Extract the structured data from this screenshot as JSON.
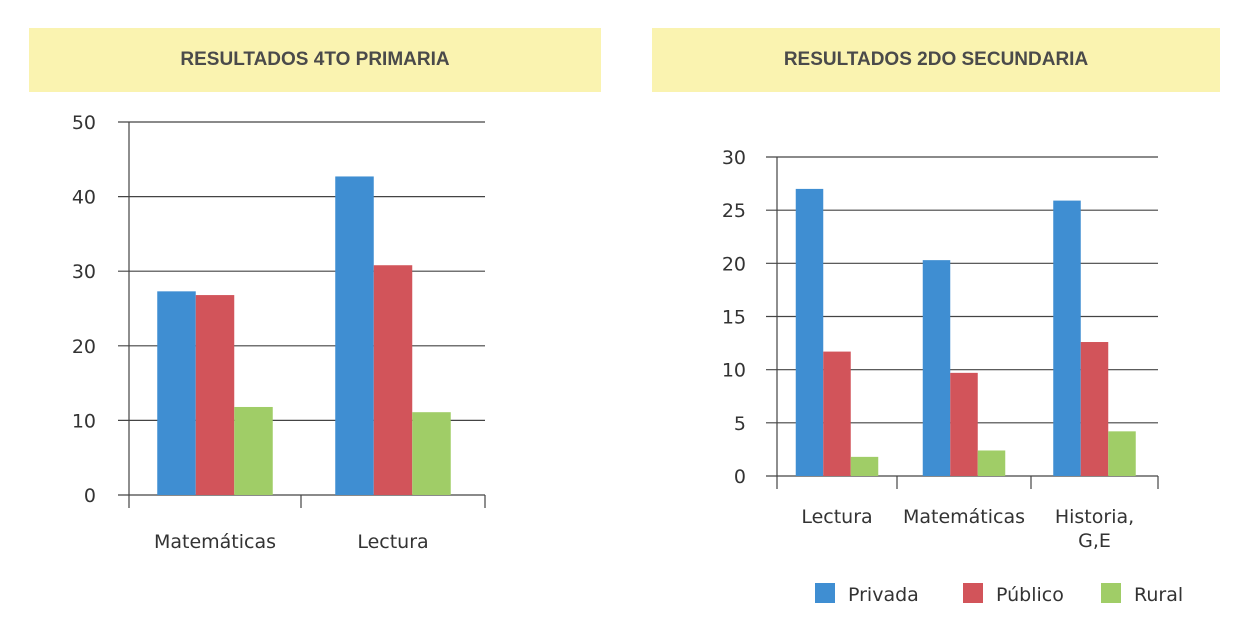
{
  "colors": {
    "privada": "#3f8ed2",
    "publico": "#d2545a",
    "rural": "#a0cd67"
  },
  "chart_data": [
    {
      "type": "bar",
      "title": "RESULTADOS 4TO PRIMARIA",
      "categories": [
        "Matemáticas",
        "Lectura"
      ],
      "series": [
        {
          "name": "Privada",
          "values": [
            27.3,
            42.7
          ]
        },
        {
          "name": "Público",
          "values": [
            26.8,
            30.8
          ]
        },
        {
          "name": "Rural",
          "values": [
            11.8,
            11.1
          ]
        }
      ],
      "ylim": [
        0,
        50
      ],
      "yticks": [
        "0",
        "10",
        "20",
        "30",
        "40",
        "50"
      ],
      "grid": true
    },
    {
      "type": "bar",
      "title": "RESULTADOS 2DO SECUNDARIA",
      "categories": [
        "Lectura",
        "Matemáticas",
        "Historia, G,E"
      ],
      "category_lines": [
        [
          "Lectura"
        ],
        [
          "Matemáticas"
        ],
        [
          "Historia,",
          "G,E"
        ]
      ],
      "series": [
        {
          "name": "Privada",
          "values": [
            27.0,
            20.3,
            25.9
          ]
        },
        {
          "name": "Público",
          "values": [
            11.7,
            9.7,
            12.6
          ]
        },
        {
          "name": "Rural",
          "values": [
            1.8,
            2.4,
            4.2
          ]
        }
      ],
      "ylim": [
        0,
        30
      ],
      "yticks": [
        "0",
        "5",
        "10",
        "15",
        "20",
        "25",
        "30"
      ],
      "grid": true,
      "legend": "bottom-right"
    }
  ],
  "legend": [
    "Privada",
    "Público",
    "Rural"
  ]
}
